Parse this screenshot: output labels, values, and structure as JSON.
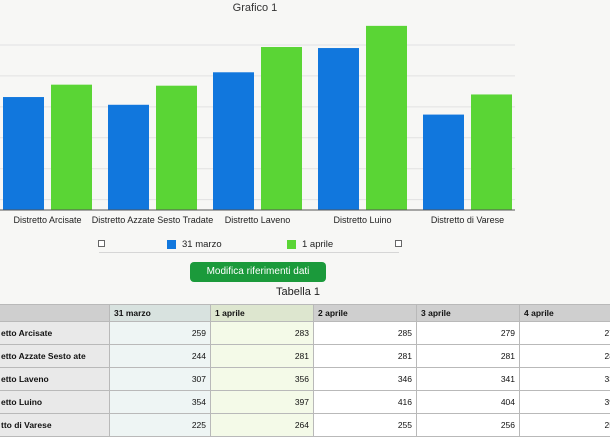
{
  "chart_data": {
    "type": "bar",
    "title": "Grafico 1",
    "categories": [
      "Distretto Arcisate",
      "Distretto Azzate Sesto Tradate",
      "Distretto Laveno",
      "Distretto Luino",
      "Distretto di Varese"
    ],
    "series": [
      {
        "name": "31 marzo",
        "values": [
          259,
          244,
          307,
          354,
          225
        ],
        "color": "#1177dd"
      },
      {
        "name": "1 aprile",
        "values": [
          283,
          281,
          356,
          397,
          264
        ],
        "color": "#5ad535"
      }
    ],
    "ylim": [
      40,
      420
    ],
    "grid": true,
    "legend": "bottom"
  },
  "actions": {
    "edit_references": "Modifica riferimenti dati"
  },
  "table": {
    "title": "Tabella 1",
    "columns": [
      "31 marzo",
      "1 aprile",
      "2 aprile",
      "3 aprile",
      "4 aprile",
      ""
    ],
    "rows": [
      {
        "label": "etto Arcisate",
        "values": [
          "259",
          "283",
          "285",
          "279",
          "27"
        ]
      },
      {
        "label": "etto Azzate Sesto ate",
        "values": [
          "244",
          "281",
          "281",
          "281",
          "28"
        ]
      },
      {
        "label": "etto Laveno",
        "values": [
          "307",
          "356",
          "346",
          "341",
          "33"
        ]
      },
      {
        "label": "etto Luino",
        "values": [
          "354",
          "397",
          "416",
          "404",
          "39"
        ]
      },
      {
        "label": "tto di Varese",
        "values": [
          "225",
          "264",
          "255",
          "256",
          "25"
        ]
      }
    ]
  }
}
